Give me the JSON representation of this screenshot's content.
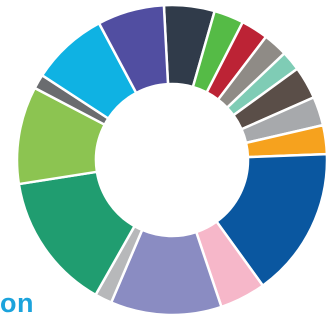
{
  "caption": {
    "text": "on",
    "color": "#1ba3dc"
  },
  "chart_data": {
    "type": "pie",
    "variant": "donut",
    "title": "",
    "legend": "none",
    "data_labels": "none",
    "unit": "percent",
    "slices": [
      {
        "value": 5.6,
        "color": "#303b4a"
      },
      {
        "value": 3.3,
        "color": "#55bb46"
      },
      {
        "value": 3.0,
        "color": "#bc2335"
      },
      {
        "value": 2.7,
        "color": "#8f8b86"
      },
      {
        "value": 2.2,
        "color": "#7fccb5"
      },
      {
        "value": 3.6,
        "color": "#5a4e48"
      },
      {
        "value": 3.2,
        "color": "#a7a9ac"
      },
      {
        "value": 3.2,
        "color": "#f6a21e"
      },
      {
        "value": 16.6,
        "color": "#0a57a0"
      },
      {
        "value": 5.1,
        "color": "#f6b7c9"
      },
      {
        "value": 12.3,
        "color": "#8a8cc2"
      },
      {
        "value": 1.9,
        "color": "#b7b8ba"
      },
      {
        "value": 15.2,
        "color": "#209d70"
      },
      {
        "value": 10.8,
        "color": "#8cc451"
      },
      {
        "value": 1.6,
        "color": "#6a6c6f"
      },
      {
        "value": 8.5,
        "color": "#0fb2e3"
      },
      {
        "value": 7.4,
        "color": "#514ea1"
      }
    ]
  }
}
